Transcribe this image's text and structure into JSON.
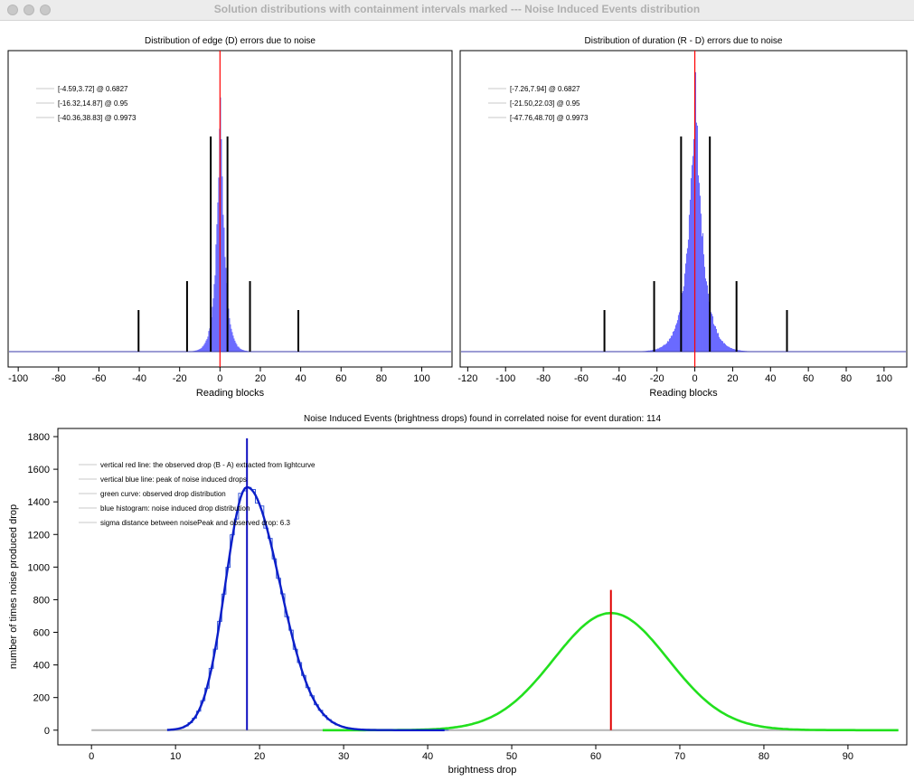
{
  "window": {
    "title": "Solution distributions with containment intervals marked --- Noise Induced Events distribution"
  },
  "chart_data": [
    {
      "type": "histogram",
      "title": "Distribution of edge (D) errors due to noise",
      "xlabel": "Reading blocks",
      "ylabel": "",
      "xlim": [
        -105,
        115
      ],
      "xticks": [
        -100,
        -80,
        -60,
        -40,
        -20,
        0,
        20,
        40,
        60,
        80,
        100
      ],
      "legend": [
        "[-4.59,3.72] @ 0.6827",
        "[-16.32,14.87] @ 0.95",
        "[-40.36,38.83] @ 0.9973"
      ],
      "legend_position": "top-left",
      "intervals": [
        {
          "low": -4.59,
          "high": 3.72,
          "level": 0.6827
        },
        {
          "low": -16.32,
          "high": 14.87,
          "level": 0.95
        },
        {
          "low": -40.36,
          "high": 38.83,
          "level": 0.9973
        }
      ],
      "red_line_x": 0,
      "histogram_color": "#6b6bff",
      "distribution": {
        "center": 0,
        "scale": 2.2,
        "peak_fraction": 0.93
      }
    },
    {
      "type": "histogram",
      "title": "Distribution of duration (R - D) errors due to noise",
      "xlabel": "Reading blocks",
      "ylabel": "",
      "xlim": [
        -124,
        112
      ],
      "xticks": [
        -120,
        -100,
        -80,
        -60,
        -40,
        -20,
        0,
        20,
        40,
        60,
        80,
        100
      ],
      "legend": [
        "[-7.26,7.94] @ 0.6827",
        "[-21.50,22.03] @ 0.95",
        "[-47.76,48.70] @ 0.9973"
      ],
      "legend_position": "top-left",
      "intervals": [
        {
          "low": -7.26,
          "high": 7.94,
          "level": 0.6827
        },
        {
          "low": -21.5,
          "high": 22.03,
          "level": 0.95
        },
        {
          "low": -47.76,
          "high": 48.7,
          "level": 0.9973
        }
      ],
      "red_line_x": 0,
      "histogram_color": "#6b6bff",
      "distribution": {
        "center": 0,
        "scale": 4.4,
        "peak_fraction": 0.93
      }
    },
    {
      "type": "line",
      "title": "Noise Induced Events (brightness drops) found in correlated noise for event duration: 114",
      "xlabel": "brightness drop",
      "ylabel": "number of times noise produced drop",
      "xlim": [
        -4,
        97
      ],
      "ylim": [
        -90,
        1850
      ],
      "xticks": [
        0,
        10,
        20,
        30,
        40,
        50,
        60,
        70,
        80,
        90
      ],
      "yticks": [
        0,
        200,
        400,
        600,
        800,
        1000,
        1200,
        1400,
        1600,
        1800
      ],
      "legend": [
        "vertical red line: the observed drop (B - A) extracted from lightcurve",
        "vertical blue line: peak of noise induced drops",
        "green curve: observed drop distribution",
        "blue histogram: noise induced drop distribution",
        "sigma distance between noisePeak and observed drop: 6.3"
      ],
      "legend_position": "top-left",
      "series": [
        {
          "color": "#0a1ec8",
          "peak_x": 18.5,
          "peak_y": 1490,
          "sigma": 3.4
        },
        {
          "color": "#22e01e",
          "peak_x": 61.8,
          "peak_y": 718,
          "sigma": 6.8
        }
      ],
      "blue_line": {
        "x": 18.5,
        "y_top": 1790
      },
      "red_line": {
        "x": 61.8,
        "y_top": 860
      },
      "baseline": {
        "x_start": 0,
        "x_end": 96,
        "y": 0
      }
    }
  ]
}
